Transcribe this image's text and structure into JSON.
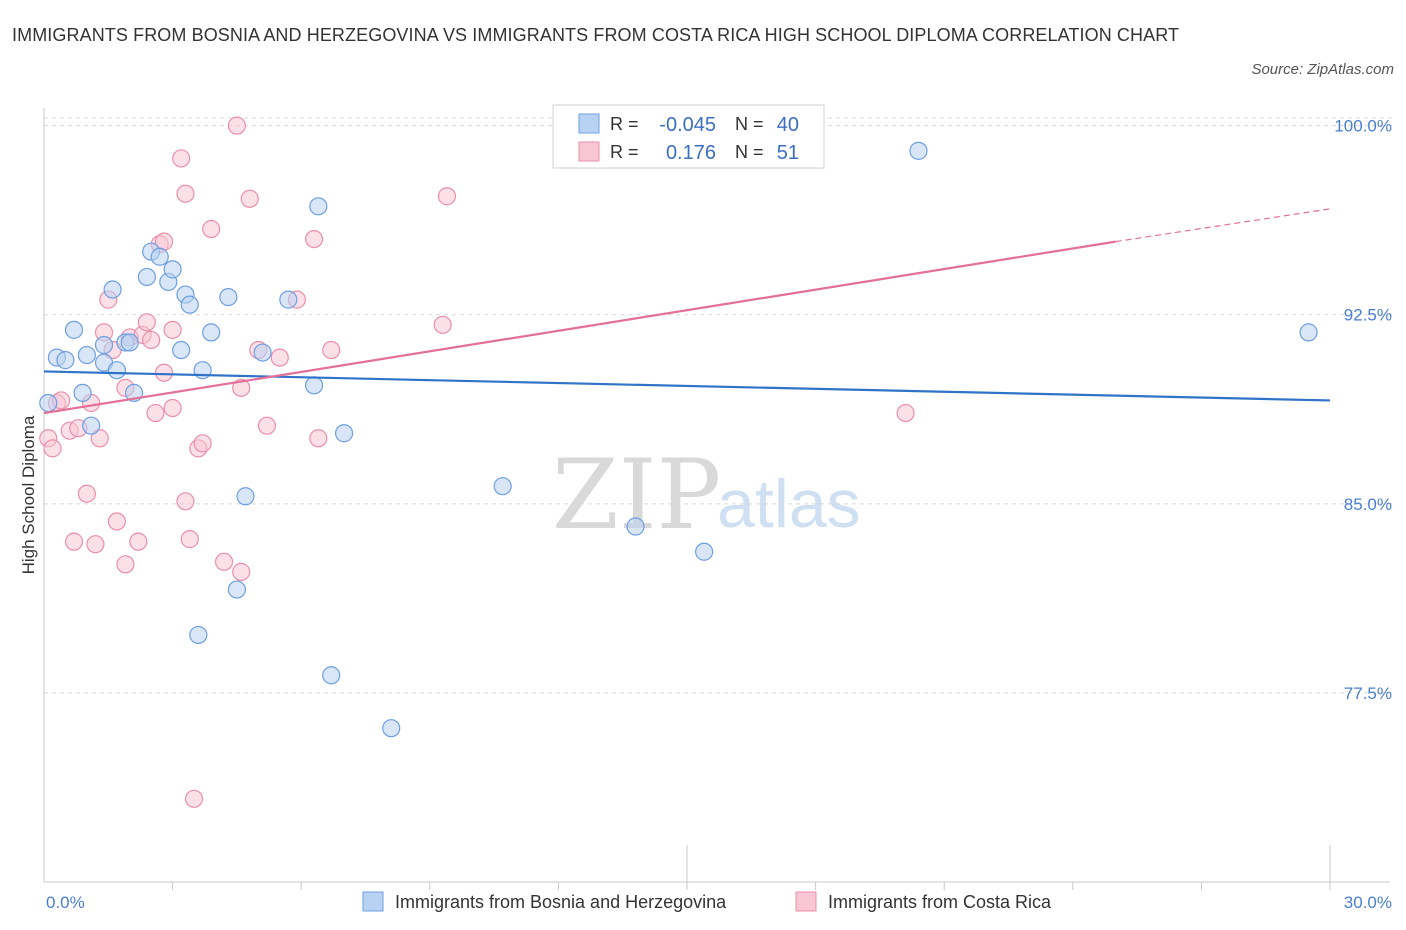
{
  "header": {
    "title": "IMMIGRANTS FROM BOSNIA AND HERZEGOVINA VS IMMIGRANTS FROM COSTA RICA HIGH SCHOOL DIPLOMA CORRELATION CHART",
    "source": "Source: ZipAtlas.com"
  },
  "watermark": {
    "zip": "ZIP",
    "atlas": "atlas"
  },
  "colors": {
    "blue_fill": "#b8d2f3",
    "blue_stroke": "#6f9fe0",
    "blue_line": "#2f74c8",
    "pink_fill": "#f8c6d5",
    "pink_stroke": "#ea8fab",
    "pink_line": "#e46f98",
    "grid": "#d8d8d8",
    "axis_label": "#4a7fcf"
  },
  "legend_box": {
    "rows": [
      {
        "r_label": "R =",
        "r_value": "-0.045",
        "n_label": "N =",
        "n_value": "40"
      },
      {
        "r_label": "R =",
        "r_value": "0.176",
        "n_label": "N =",
        "n_value": "51"
      }
    ]
  },
  "chart_data": {
    "type": "scatter",
    "title": "IMMIGRANTS FROM BOSNIA AND HERZEGOVINA VS IMMIGRANTS FROM COSTA RICA HIGH SCHOOL DIPLOMA CORRELATION CHART",
    "xlabel": "",
    "ylabel": "High School Diploma",
    "xlim": [
      0,
      30
    ],
    "ylim": [
      70,
      100.7
    ],
    "x_tick_labels": [
      "0.0%",
      "30.0%"
    ],
    "y_ticks": [
      77.5,
      85.0,
      92.5,
      100.0
    ],
    "y_tick_labels": [
      "77.5%",
      "85.0%",
      "92.5%",
      "100.0%"
    ],
    "grid": true,
    "legend": "bottom-center",
    "series": [
      {
        "name": "Immigrants from Bosnia and Herzegovina",
        "color": "blue",
        "R": -0.045,
        "N": 40,
        "trend": {
          "x": [
            0,
            30
          ],
          "y": [
            90.25,
            89.1
          ]
        },
        "points": [
          [
            0.1,
            89.0
          ],
          [
            0.3,
            90.8
          ],
          [
            0.5,
            90.7
          ],
          [
            0.7,
            91.9
          ],
          [
            0.9,
            89.4
          ],
          [
            1.0,
            90.9
          ],
          [
            1.1,
            88.1
          ],
          [
            1.4,
            91.3
          ],
          [
            1.4,
            90.6
          ],
          [
            1.6,
            93.5
          ],
          [
            1.7,
            90.3
          ],
          [
            1.9,
            91.4
          ],
          [
            2.0,
            91.4
          ],
          [
            2.1,
            89.4
          ],
          [
            2.4,
            94.0
          ],
          [
            2.5,
            95.0
          ],
          [
            2.7,
            94.8
          ],
          [
            2.9,
            93.8
          ],
          [
            3.0,
            94.3
          ],
          [
            3.2,
            91.1
          ],
          [
            3.3,
            93.3
          ],
          [
            3.4,
            92.9
          ],
          [
            3.6,
            79.8
          ],
          [
            3.7,
            90.3
          ],
          [
            3.9,
            91.8
          ],
          [
            4.3,
            93.2
          ],
          [
            4.5,
            81.6
          ],
          [
            4.7,
            85.3
          ],
          [
            5.1,
            91.0
          ],
          [
            5.7,
            93.1
          ],
          [
            6.3,
            89.7
          ],
          [
            6.4,
            96.8
          ],
          [
            6.7,
            78.2
          ],
          [
            7.0,
            87.8
          ],
          [
            8.1,
            76.1
          ],
          [
            10.7,
            85.7
          ],
          [
            13.8,
            84.1
          ],
          [
            15.4,
            83.1
          ],
          [
            20.4,
            99.0
          ],
          [
            29.5,
            91.8
          ]
        ]
      },
      {
        "name": "Immigrants from Costa Rica",
        "color": "pink",
        "R": 0.176,
        "N": 51,
        "trend": {
          "x": [
            0,
            25
          ],
          "y": [
            88.6,
            95.4
          ]
        },
        "trend_dashed": {
          "x": [
            25,
            30
          ],
          "y": [
            95.4,
            96.7
          ]
        },
        "points": [
          [
            0.1,
            87.6
          ],
          [
            0.2,
            87.2
          ],
          [
            0.3,
            89.0
          ],
          [
            0.4,
            89.1
          ],
          [
            0.6,
            87.9
          ],
          [
            0.7,
            83.5
          ],
          [
            0.8,
            88.0
          ],
          [
            1.0,
            85.4
          ],
          [
            1.1,
            89.0
          ],
          [
            1.2,
            83.4
          ],
          [
            1.3,
            87.6
          ],
          [
            1.4,
            91.8
          ],
          [
            1.5,
            93.1
          ],
          [
            1.6,
            91.1
          ],
          [
            1.7,
            84.3
          ],
          [
            1.9,
            89.6
          ],
          [
            1.9,
            82.6
          ],
          [
            2.0,
            91.6
          ],
          [
            2.2,
            83.5
          ],
          [
            2.3,
            91.7
          ],
          [
            2.4,
            92.2
          ],
          [
            2.5,
            91.5
          ],
          [
            2.6,
            88.6
          ],
          [
            2.7,
            95.3
          ],
          [
            2.8,
            95.4
          ],
          [
            2.8,
            90.2
          ],
          [
            3.0,
            91.9
          ],
          [
            3.0,
            88.8
          ],
          [
            3.2,
            98.7
          ],
          [
            3.3,
            85.1
          ],
          [
            3.3,
            97.3
          ],
          [
            3.4,
            83.6
          ],
          [
            3.5,
            73.3
          ],
          [
            3.6,
            87.2
          ],
          [
            3.7,
            87.4
          ],
          [
            3.9,
            95.9
          ],
          [
            4.2,
            82.7
          ],
          [
            4.5,
            100.0
          ],
          [
            4.6,
            82.3
          ],
          [
            4.6,
            89.6
          ],
          [
            4.8,
            97.1
          ],
          [
            5.0,
            91.1
          ],
          [
            5.2,
            88.1
          ],
          [
            5.5,
            90.8
          ],
          [
            5.9,
            93.1
          ],
          [
            6.3,
            95.5
          ],
          [
            6.4,
            87.6
          ],
          [
            6.7,
            91.1
          ],
          [
            9.3,
            92.1
          ],
          [
            9.4,
            97.2
          ],
          [
            20.1,
            88.6
          ]
        ]
      }
    ]
  }
}
